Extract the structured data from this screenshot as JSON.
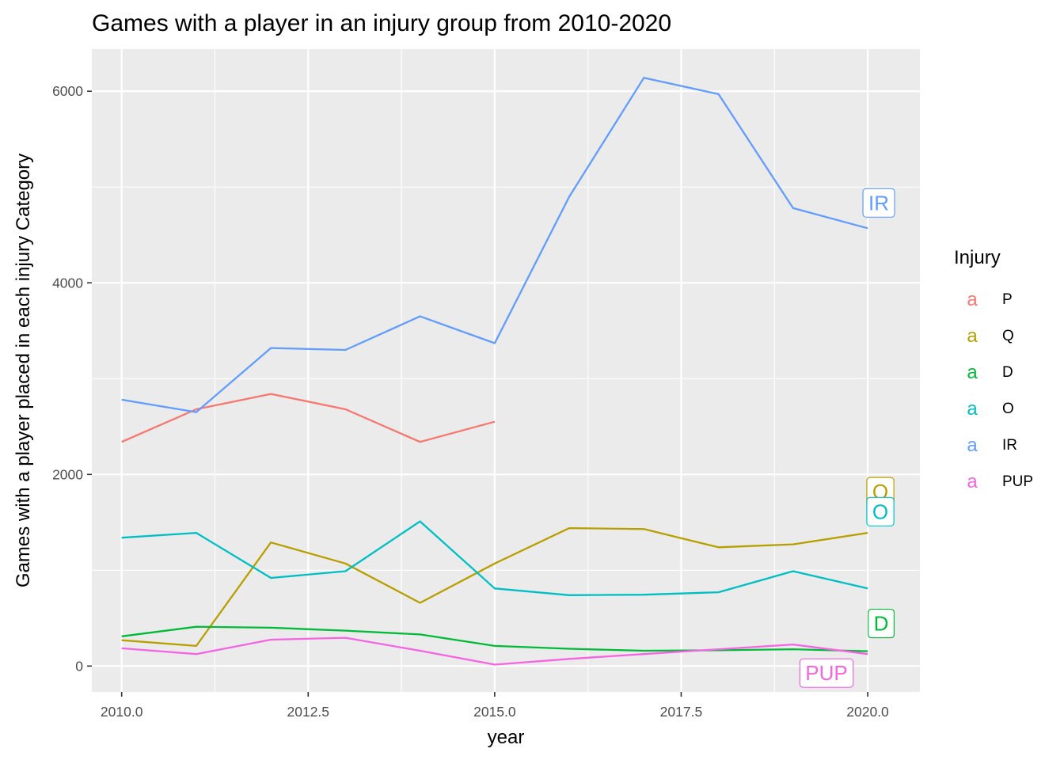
{
  "chart_data": {
    "type": "line",
    "title": "Games with a player in an injury group from 2010-2020",
    "xlabel": "year",
    "ylabel": "Games with a player placed in each injury Category",
    "xlim": [
      2009.6,
      2020.7
    ],
    "ylim": [
      -270,
      6440
    ],
    "x_ticks": [
      2010,
      2012.5,
      2015,
      2017.5,
      2020
    ],
    "x_tick_labels": [
      "2010.0",
      "2012.5",
      "2015.0",
      "2017.5",
      "2020.0"
    ],
    "y_ticks": [
      0,
      2000,
      4000,
      6000
    ],
    "y_tick_labels": [
      "0",
      "2000",
      "4000",
      "6000"
    ],
    "grid": true,
    "legend": {
      "title": "Injury",
      "position": "right",
      "key_glyph": "a"
    },
    "series": [
      {
        "name": "P",
        "color": "#F8766D",
        "x": [
          2010,
          2011,
          2012,
          2013,
          2014,
          2015
        ],
        "y": [
          2340,
          2680,
          2840,
          2680,
          2340,
          2550
        ]
      },
      {
        "name": "Q",
        "color": "#B79F00",
        "end_label": "Q",
        "x": [
          2010,
          2011,
          2012,
          2013,
          2014,
          2015,
          2016,
          2017,
          2018,
          2019,
          2020
        ],
        "y": [
          270,
          210,
          1290,
          1070,
          660,
          1070,
          1440,
          1430,
          1240,
          1270,
          1390
        ]
      },
      {
        "name": "D",
        "color": "#00BA38",
        "end_label": "D",
        "x": [
          2010,
          2011,
          2012,
          2013,
          2014,
          2015,
          2016,
          2017,
          2018,
          2019,
          2020
        ],
        "y": [
          310,
          410,
          400,
          370,
          330,
          210,
          180,
          160,
          165,
          175,
          155
        ]
      },
      {
        "name": "O",
        "color": "#00BFC4",
        "end_label": "O",
        "x": [
          2010,
          2011,
          2012,
          2013,
          2014,
          2015,
          2016,
          2017,
          2018,
          2019,
          2020
        ],
        "y": [
          1340,
          1390,
          920,
          990,
          1510,
          810,
          740,
          745,
          770,
          990,
          810
        ]
      },
      {
        "name": "IR",
        "color": "#619CFF",
        "end_label": "IR",
        "x": [
          2010,
          2011,
          2012,
          2013,
          2014,
          2015,
          2016,
          2017,
          2018,
          2019,
          2020
        ],
        "y": [
          2780,
          2650,
          3320,
          3300,
          3650,
          3370,
          4900,
          6140,
          5970,
          4780,
          4570
        ]
      },
      {
        "name": "PUP",
        "color": "#F564E3",
        "end_label": "PUP",
        "x": [
          2010,
          2011,
          2012,
          2013,
          2014,
          2015,
          2016,
          2017,
          2018,
          2019,
          2020
        ],
        "y": [
          185,
          125,
          275,
          295,
          160,
          15,
          75,
          125,
          175,
          225,
          125
        ]
      }
    ]
  }
}
